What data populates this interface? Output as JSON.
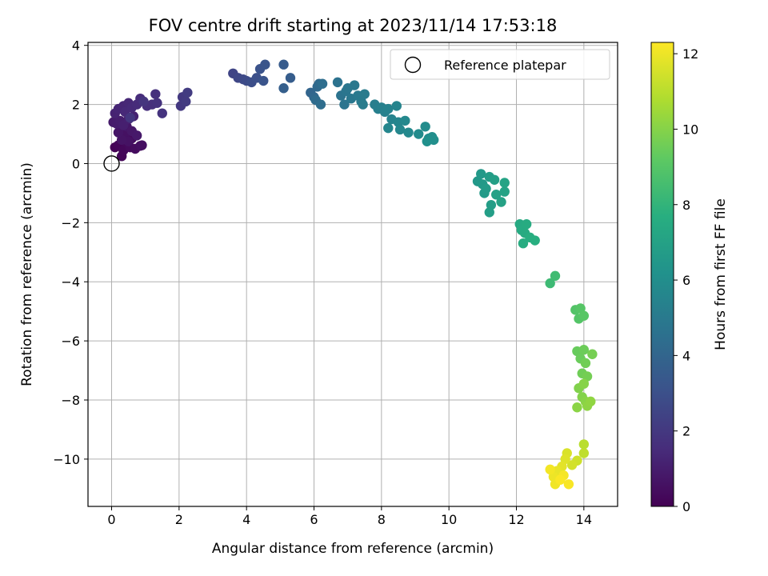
{
  "chart_data": {
    "type": "scatter",
    "title": "FOV centre drift starting at 2023/11/14 17:53:18",
    "xlabel": "Angular distance from reference (arcmin)",
    "ylabel": "Rotation from reference (arcmin)",
    "xlim": [
      -0.7,
      15.0
    ],
    "ylim": [
      -11.6,
      4.1
    ],
    "xticks": [
      0,
      2,
      4,
      6,
      8,
      10,
      12,
      14
    ],
    "yticks": [
      4,
      2,
      0,
      -2,
      -4,
      -6,
      -8,
      -10
    ],
    "ytick_labels": [
      "4",
      "2",
      "0",
      "−2",
      "−4",
      "−6",
      "−8",
      "−10"
    ],
    "grid": true,
    "legend": {
      "position": "upper right",
      "entries": [
        "Reference platepar"
      ]
    },
    "reference_point": {
      "x": 0,
      "y": 0,
      "label": "Reference platepar"
    },
    "colorbar": {
      "label": "Hours from first FF file",
      "min": 0,
      "max": 12.3,
      "ticks": [
        0,
        2,
        4,
        6,
        8,
        10,
        12
      ],
      "colormap": "viridis"
    },
    "points": [
      {
        "x": 0.1,
        "y": 0.55,
        "t": 0.05
      },
      {
        "x": 0.2,
        "y": 0.62,
        "t": 0.1
      },
      {
        "x": 0.3,
        "y": 0.25,
        "t": 0.15
      },
      {
        "x": 0.35,
        "y": 0.45,
        "t": 0.2
      },
      {
        "x": 0.45,
        "y": 0.7,
        "t": 0.25
      },
      {
        "x": 0.55,
        "y": 0.55,
        "t": 0.3
      },
      {
        "x": 0.6,
        "y": 0.85,
        "t": 0.35
      },
      {
        "x": 0.7,
        "y": 0.5,
        "t": 0.4
      },
      {
        "x": 0.85,
        "y": 0.6,
        "t": 0.45
      },
      {
        "x": 0.9,
        "y": 0.62,
        "t": 0.5
      },
      {
        "x": 0.4,
        "y": 1.0,
        "t": 0.55
      },
      {
        "x": 0.5,
        "y": 0.75,
        "t": 0.6
      },
      {
        "x": 0.3,
        "y": 0.8,
        "t": 0.65
      },
      {
        "x": 0.2,
        "y": 1.05,
        "t": 0.7
      },
      {
        "x": 0.45,
        "y": 1.25,
        "t": 0.75
      },
      {
        "x": 0.6,
        "y": 1.1,
        "t": 0.8
      },
      {
        "x": 0.75,
        "y": 0.95,
        "t": 0.85
      },
      {
        "x": 0.05,
        "y": 1.4,
        "t": 0.9
      },
      {
        "x": 0.15,
        "y": 1.35,
        "t": 0.95
      },
      {
        "x": 0.25,
        "y": 1.45,
        "t": 1.0
      },
      {
        "x": 0.35,
        "y": 1.3,
        "t": 1.05
      },
      {
        "x": 0.5,
        "y": 1.5,
        "t": 1.1
      },
      {
        "x": 0.65,
        "y": 1.6,
        "t": 1.15
      },
      {
        "x": 0.1,
        "y": 1.7,
        "t": 1.2
      },
      {
        "x": 0.2,
        "y": 1.85,
        "t": 1.25
      },
      {
        "x": 0.35,
        "y": 1.95,
        "t": 1.3
      },
      {
        "x": 0.5,
        "y": 2.05,
        "t": 1.35
      },
      {
        "x": 0.4,
        "y": 1.75,
        "t": 1.4
      },
      {
        "x": 0.6,
        "y": 1.9,
        "t": 1.45
      },
      {
        "x": 0.75,
        "y": 2.0,
        "t": 1.5
      },
      {
        "x": 0.85,
        "y": 2.2,
        "t": 1.55
      },
      {
        "x": 1.05,
        "y": 1.95,
        "t": 1.6
      },
      {
        "x": 1.2,
        "y": 2.0,
        "t": 1.65
      },
      {
        "x": 1.3,
        "y": 2.35,
        "t": 1.7
      },
      {
        "x": 1.35,
        "y": 2.05,
        "t": 1.75
      },
      {
        "x": 1.5,
        "y": 1.7,
        "t": 1.8
      },
      {
        "x": 0.95,
        "y": 2.1,
        "t": 1.85
      },
      {
        "x": 0.55,
        "y": 1.55,
        "t": 1.9
      },
      {
        "x": 2.05,
        "y": 1.95,
        "t": 2.0
      },
      {
        "x": 2.1,
        "y": 2.25,
        "t": 2.05
      },
      {
        "x": 2.2,
        "y": 2.1,
        "t": 2.1
      },
      {
        "x": 2.25,
        "y": 2.4,
        "t": 2.15
      },
      {
        "x": 3.6,
        "y": 3.05,
        "t": 2.5
      },
      {
        "x": 3.75,
        "y": 2.9,
        "t": 2.6
      },
      {
        "x": 3.9,
        "y": 2.85,
        "t": 2.7
      },
      {
        "x": 4.0,
        "y": 2.8,
        "t": 2.8
      },
      {
        "x": 4.15,
        "y": 2.75,
        "t": 2.9
      },
      {
        "x": 4.3,
        "y": 2.9,
        "t": 3.0
      },
      {
        "x": 4.4,
        "y": 3.2,
        "t": 3.1
      },
      {
        "x": 4.5,
        "y": 2.8,
        "t": 3.15
      },
      {
        "x": 4.55,
        "y": 3.35,
        "t": 3.2
      },
      {
        "x": 5.1,
        "y": 3.35,
        "t": 3.5
      },
      {
        "x": 5.3,
        "y": 2.9,
        "t": 3.6
      },
      {
        "x": 5.1,
        "y": 2.55,
        "t": 3.7
      },
      {
        "x": 5.9,
        "y": 2.4,
        "t": 4.0
      },
      {
        "x": 6.0,
        "y": 2.25,
        "t": 4.1
      },
      {
        "x": 6.1,
        "y": 2.6,
        "t": 4.2
      },
      {
        "x": 6.15,
        "y": 2.7,
        "t": 4.25
      },
      {
        "x": 6.05,
        "y": 2.15,
        "t": 4.3
      },
      {
        "x": 6.2,
        "y": 2.0,
        "t": 4.35
      },
      {
        "x": 6.25,
        "y": 2.7,
        "t": 4.4
      },
      {
        "x": 6.7,
        "y": 2.75,
        "t": 4.6
      },
      {
        "x": 6.8,
        "y": 2.3,
        "t": 4.65
      },
      {
        "x": 6.9,
        "y": 2.0,
        "t": 4.7
      },
      {
        "x": 6.95,
        "y": 2.45,
        "t": 4.75
      },
      {
        "x": 7.0,
        "y": 2.55,
        "t": 4.8
      },
      {
        "x": 7.1,
        "y": 2.2,
        "t": 4.85
      },
      {
        "x": 7.2,
        "y": 2.65,
        "t": 4.9
      },
      {
        "x": 7.3,
        "y": 2.3,
        "t": 4.95
      },
      {
        "x": 7.4,
        "y": 2.1,
        "t": 5.0
      },
      {
        "x": 7.5,
        "y": 2.35,
        "t": 5.05
      },
      {
        "x": 7.45,
        "y": 2.0,
        "t": 5.1
      },
      {
        "x": 7.8,
        "y": 2.0,
        "t": 5.2
      },
      {
        "x": 7.9,
        "y": 1.85,
        "t": 5.25
      },
      {
        "x": 8.0,
        "y": 1.9,
        "t": 5.3
      },
      {
        "x": 8.1,
        "y": 1.75,
        "t": 5.35
      },
      {
        "x": 8.2,
        "y": 1.85,
        "t": 5.4
      },
      {
        "x": 8.3,
        "y": 1.5,
        "t": 5.45
      },
      {
        "x": 8.45,
        "y": 1.95,
        "t": 5.5
      },
      {
        "x": 8.5,
        "y": 1.4,
        "t": 5.55
      },
      {
        "x": 8.2,
        "y": 1.2,
        "t": 5.6
      },
      {
        "x": 8.55,
        "y": 1.15,
        "t": 5.65
      },
      {
        "x": 8.7,
        "y": 1.45,
        "t": 5.7
      },
      {
        "x": 8.8,
        "y": 1.05,
        "t": 5.75
      },
      {
        "x": 9.1,
        "y": 1.0,
        "t": 5.85
      },
      {
        "x": 9.3,
        "y": 1.25,
        "t": 5.9
      },
      {
        "x": 9.4,
        "y": 0.85,
        "t": 5.95
      },
      {
        "x": 9.5,
        "y": 0.9,
        "t": 6.0
      },
      {
        "x": 9.55,
        "y": 0.8,
        "t": 6.05
      },
      {
        "x": 9.35,
        "y": 0.75,
        "t": 6.1
      },
      {
        "x": 10.85,
        "y": -0.6,
        "t": 6.5
      },
      {
        "x": 10.95,
        "y": -0.35,
        "t": 6.55
      },
      {
        "x": 11.0,
        "y": -0.7,
        "t": 6.6
      },
      {
        "x": 11.05,
        "y": -1.0,
        "t": 6.65
      },
      {
        "x": 11.1,
        "y": -0.85,
        "t": 6.7
      },
      {
        "x": 11.2,
        "y": -0.45,
        "t": 6.75
      },
      {
        "x": 11.25,
        "y": -1.4,
        "t": 6.8
      },
      {
        "x": 11.2,
        "y": -1.65,
        "t": 6.85
      },
      {
        "x": 11.35,
        "y": -0.55,
        "t": 6.9
      },
      {
        "x": 11.4,
        "y": -1.05,
        "t": 6.95
      },
      {
        "x": 11.55,
        "y": -1.3,
        "t": 7.0
      },
      {
        "x": 11.65,
        "y": -0.95,
        "t": 7.05
      },
      {
        "x": 11.65,
        "y": -0.65,
        "t": 7.1
      },
      {
        "x": 12.1,
        "y": -2.05,
        "t": 7.4
      },
      {
        "x": 12.15,
        "y": -2.25,
        "t": 7.45
      },
      {
        "x": 12.25,
        "y": -2.35,
        "t": 7.5
      },
      {
        "x": 12.3,
        "y": -2.05,
        "t": 7.55
      },
      {
        "x": 12.2,
        "y": -2.7,
        "t": 7.6
      },
      {
        "x": 12.4,
        "y": -2.5,
        "t": 7.65
      },
      {
        "x": 12.55,
        "y": -2.6,
        "t": 7.7
      },
      {
        "x": 13.0,
        "y": -4.05,
        "t": 8.3
      },
      {
        "x": 13.15,
        "y": -3.8,
        "t": 8.4
      },
      {
        "x": 13.75,
        "y": -4.95,
        "t": 8.9
      },
      {
        "x": 13.85,
        "y": -5.25,
        "t": 8.95
      },
      {
        "x": 13.9,
        "y": -4.9,
        "t": 9.0
      },
      {
        "x": 14.0,
        "y": -5.15,
        "t": 9.05
      },
      {
        "x": 13.8,
        "y": -6.35,
        "t": 9.4
      },
      {
        "x": 13.9,
        "y": -6.6,
        "t": 9.45
      },
      {
        "x": 14.0,
        "y": -6.3,
        "t": 9.5
      },
      {
        "x": 13.95,
        "y": -7.1,
        "t": 9.55
      },
      {
        "x": 14.05,
        "y": -6.75,
        "t": 9.6
      },
      {
        "x": 14.1,
        "y": -7.2,
        "t": 9.65
      },
      {
        "x": 14.25,
        "y": -6.45,
        "t": 9.7
      },
      {
        "x": 13.85,
        "y": -7.6,
        "t": 9.9
      },
      {
        "x": 13.95,
        "y": -7.9,
        "t": 9.95
      },
      {
        "x": 14.0,
        "y": -7.45,
        "t": 10.0
      },
      {
        "x": 14.05,
        "y": -8.05,
        "t": 10.05
      },
      {
        "x": 13.8,
        "y": -8.25,
        "t": 10.1
      },
      {
        "x": 14.1,
        "y": -8.2,
        "t": 10.15
      },
      {
        "x": 14.2,
        "y": -8.05,
        "t": 10.2
      },
      {
        "x": 14.0,
        "y": -9.5,
        "t": 11.0
      },
      {
        "x": 14.0,
        "y": -9.8,
        "t": 11.1
      },
      {
        "x": 13.8,
        "y": -10.05,
        "t": 11.4
      },
      {
        "x": 13.65,
        "y": -10.2,
        "t": 11.5
      },
      {
        "x": 13.5,
        "y": -9.8,
        "t": 11.6
      },
      {
        "x": 13.45,
        "y": -10.0,
        "t": 11.7
      },
      {
        "x": 13.35,
        "y": -10.25,
        "t": 11.8
      },
      {
        "x": 13.2,
        "y": -10.4,
        "t": 11.9
      },
      {
        "x": 13.1,
        "y": -10.6,
        "t": 12.0
      },
      {
        "x": 13.15,
        "y": -10.85,
        "t": 12.05
      },
      {
        "x": 13.0,
        "y": -10.35,
        "t": 12.1
      },
      {
        "x": 13.4,
        "y": -10.55,
        "t": 12.15
      },
      {
        "x": 13.55,
        "y": -10.85,
        "t": 12.2
      },
      {
        "x": 13.3,
        "y": -10.7,
        "t": 12.25
      }
    ]
  }
}
